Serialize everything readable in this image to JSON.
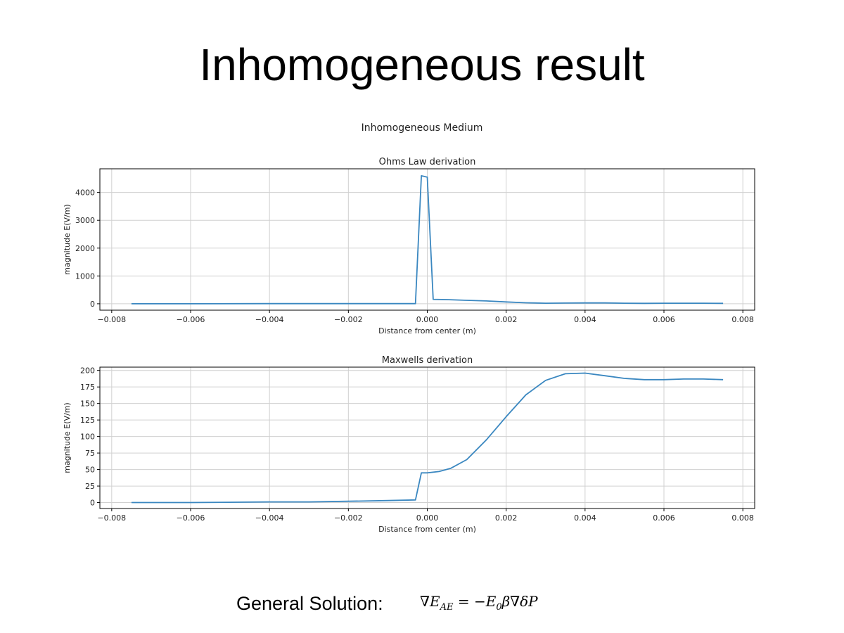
{
  "slide": {
    "title": "Inhomogeneous result",
    "figure_title": "Inhomogeneous Medium",
    "solution_label": "General Solution:",
    "formula": "∇E_AE = −E₀β∇δP",
    "formula_display": "∇Eₐᴇ = −E₀β∇δP"
  },
  "colors": {
    "line": "#3a87c0",
    "grid": "#d0d0d0",
    "axis": "#000000"
  },
  "chart_data": [
    {
      "type": "line",
      "title": "Ohms Law derivation",
      "xlabel": "Distance from center (m)",
      "ylabel": "magnitude E(V/m)",
      "xlim": [
        -0.0083,
        0.0083
      ],
      "ylim": [
        -230,
        4850
      ],
      "xticks": [
        -0.008,
        -0.006,
        -0.004,
        -0.002,
        0.0,
        0.002,
        0.004,
        0.006,
        0.008
      ],
      "xtick_labels": [
        "−0.008",
        "−0.006",
        "−0.004",
        "−0.002",
        "0.000",
        "0.002",
        "0.004",
        "0.006",
        "0.008"
      ],
      "yticks": [
        0,
        1000,
        2000,
        3000,
        4000
      ],
      "ytick_labels": [
        "0",
        "1000",
        "2000",
        "3000",
        "4000"
      ],
      "grid": true,
      "series": [
        {
          "x": [
            -0.0075,
            -0.006,
            -0.004,
            -0.002,
            -0.0003,
            -0.00015,
            0.0,
            0.00015,
            0.0005,
            0.001,
            0.0015,
            0.002,
            0.0025,
            0.003,
            0.0035,
            0.004,
            0.0045,
            0.005,
            0.0055,
            0.006,
            0.0065,
            0.007,
            0.0075
          ],
          "y": [
            0,
            0,
            5,
            5,
            5,
            4600,
            4550,
            160,
            150,
            125,
            100,
            65,
            35,
            20,
            25,
            30,
            30,
            20,
            15,
            20,
            20,
            20,
            15
          ]
        }
      ]
    },
    {
      "type": "line",
      "title": "Maxwells derivation",
      "xlabel": "Distance from center (m)",
      "ylabel": "magnitude E(V/m)",
      "xlim": [
        -0.0083,
        0.0083
      ],
      "ylim": [
        -9,
        205
      ],
      "xticks": [
        -0.008,
        -0.006,
        -0.004,
        -0.002,
        0.0,
        0.002,
        0.004,
        0.006,
        0.008
      ],
      "xtick_labels": [
        "−0.008",
        "−0.006",
        "−0.004",
        "−0.002",
        "0.000",
        "0.002",
        "0.004",
        "0.006",
        "0.008"
      ],
      "yticks": [
        0,
        25,
        50,
        75,
        100,
        125,
        150,
        175,
        200
      ],
      "ytick_labels": [
        "0",
        "25",
        "50",
        "75",
        "100",
        "125",
        "150",
        "175",
        "200"
      ],
      "grid": true,
      "series": [
        {
          "x": [
            -0.0075,
            -0.006,
            -0.005,
            -0.004,
            -0.003,
            -0.002,
            -0.001,
            -0.0003,
            -0.00015,
            0.0,
            0.0003,
            0.0006,
            0.001,
            0.0015,
            0.002,
            0.0025,
            0.003,
            0.0035,
            0.004,
            0.0045,
            0.005,
            0.0055,
            0.006,
            0.0065,
            0.007,
            0.0075
          ],
          "y": [
            0,
            0,
            0.5,
            1,
            1,
            2,
            3,
            4,
            45,
            45,
            47,
            52,
            65,
            95,
            130,
            163,
            185,
            195,
            196,
            192,
            188,
            186,
            186,
            187,
            187,
            186
          ]
        }
      ]
    }
  ]
}
